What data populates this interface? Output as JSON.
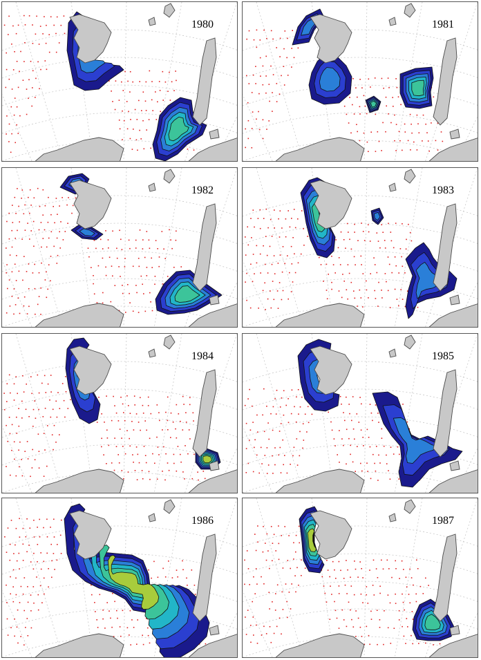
{
  "panels": [
    {
      "year": "1980"
    },
    {
      "year": "1981"
    },
    {
      "year": "1982"
    },
    {
      "year": "1983"
    },
    {
      "year": "1984"
    },
    {
      "year": "1985"
    },
    {
      "year": "1986"
    },
    {
      "year": "1987"
    }
  ],
  "colors": {
    "land": "#c8c8c8",
    "land_outline": "#4a4a4a",
    "station_dot": "#e02020",
    "graticule": "#c8c8c8",
    "contour_levels": [
      "#1a1a8c",
      "#2b3fd0",
      "#2a7fd8",
      "#22b6c8",
      "#3cc49a",
      "#a8cc3c",
      "#f2c02c"
    ]
  },
  "icons": [
    "station-dot",
    "land-mass",
    "density-contour"
  ]
}
